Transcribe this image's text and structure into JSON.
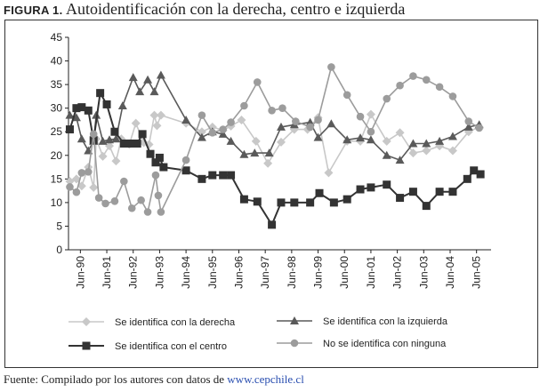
{
  "title": {
    "label": "FIGURA 1.",
    "text": "Autoidentificación con la derecha, centro e izquierda"
  },
  "source": {
    "prefix": "Fuente: Compilado por los autores con datos de ",
    "link": "www.cepchile.cl"
  },
  "colors": {
    "derecha": "#c8c8c8",
    "centro": "#333333",
    "izquierda": "#5a5a5a",
    "ninguna": "#9c9c9c",
    "axis": "#222222"
  },
  "chart_data": {
    "type": "line",
    "title": "Autoidentificación con la derecha, centro e izquierda",
    "xlabel": "",
    "ylabel": "",
    "ylim": [
      0,
      45
    ],
    "yticks": [
      0,
      5,
      10,
      15,
      20,
      25,
      30,
      35,
      40,
      45
    ],
    "xlim": [
      1990.0,
      2006.0
    ],
    "xtick_labels": [
      {
        "x": 1990.45,
        "label": "Jun-90"
      },
      {
        "x": 1991.45,
        "label": "Jun-91"
      },
      {
        "x": 1992.45,
        "label": "Jun-92"
      },
      {
        "x": 1993.45,
        "label": "Jun-93"
      },
      {
        "x": 1994.45,
        "label": "Jun-94"
      },
      {
        "x": 1995.45,
        "label": "Jun-95"
      },
      {
        "x": 1996.45,
        "label": "Jun-96"
      },
      {
        "x": 1997.45,
        "label": "Jun-97"
      },
      {
        "x": 1998.45,
        "label": "Jun-98"
      },
      {
        "x": 1999.45,
        "label": "Jun-99"
      },
      {
        "x": 2000.45,
        "label": "Jun-00"
      },
      {
        "x": 2001.45,
        "label": "Jun-01"
      },
      {
        "x": 2002.45,
        "label": "Jun-02"
      },
      {
        "x": 2003.45,
        "label": "Jun-03"
      },
      {
        "x": 2004.45,
        "label": "Jun-04"
      },
      {
        "x": 2005.45,
        "label": "Jun-05"
      }
    ],
    "legend": {
      "position": "bottom",
      "columns": 2
    },
    "series": [
      {
        "key": "derecha",
        "name": "Se identifica con la derecha",
        "marker": "diamond",
        "points": [
          [
            1990.05,
            14.5
          ],
          [
            1990.3,
            15.0
          ],
          [
            1990.5,
            13.5
          ],
          [
            1990.75,
            17.5
          ],
          [
            1990.95,
            13.2
          ],
          [
            1991.05,
            23.5
          ],
          [
            1991.3,
            19.8
          ],
          [
            1991.55,
            22.0
          ],
          [
            1991.8,
            18.8
          ],
          [
            1992.0,
            23.5
          ],
          [
            1992.3,
            22.3
          ],
          [
            1992.55,
            26.8
          ],
          [
            1992.85,
            22.7
          ],
          [
            1993.05,
            22.3
          ],
          [
            1993.25,
            28.5
          ],
          [
            1993.35,
            26.3
          ],
          [
            1993.5,
            28.5
          ],
          [
            1994.45,
            26.8
          ],
          [
            1995.05,
            25.0
          ],
          [
            1995.45,
            26.0
          ],
          [
            1995.85,
            25.3
          ],
          [
            1996.15,
            26.2
          ],
          [
            1996.55,
            27.5
          ],
          [
            1997.1,
            23.0
          ],
          [
            1997.55,
            18.3
          ],
          [
            1998.05,
            22.8
          ],
          [
            1998.55,
            25.5
          ],
          [
            1999.05,
            25.5
          ],
          [
            1999.45,
            28.0
          ],
          [
            1999.85,
            16.3
          ],
          [
            2000.55,
            23.0
          ],
          [
            2001.05,
            23.0
          ],
          [
            2001.45,
            28.7
          ],
          [
            2002.05,
            23.0
          ],
          [
            2002.55,
            24.8
          ],
          [
            2003.05,
            20.5
          ],
          [
            2003.55,
            21.0
          ],
          [
            2004.05,
            22.0
          ],
          [
            2004.55,
            21.0
          ],
          [
            2005.15,
            25.0
          ],
          [
            2005.55,
            26.0
          ]
        ]
      },
      {
        "key": "izquierda",
        "name": "Se identifica con la izquierda",
        "marker": "triangle",
        "points": [
          [
            1990.05,
            28.5
          ],
          [
            1990.3,
            28.0
          ],
          [
            1990.5,
            23.5
          ],
          [
            1990.75,
            21.0
          ],
          [
            1990.95,
            23.0
          ],
          [
            1991.05,
            28.5
          ],
          [
            1991.3,
            23.0
          ],
          [
            1991.55,
            23.3
          ],
          [
            1991.8,
            23.5
          ],
          [
            1992.05,
            30.5
          ],
          [
            1992.45,
            36.5
          ],
          [
            1992.7,
            33.5
          ],
          [
            1993.0,
            36.0
          ],
          [
            1993.25,
            33.5
          ],
          [
            1993.5,
            37.0
          ],
          [
            1994.45,
            27.5
          ],
          [
            1995.05,
            23.8
          ],
          [
            1995.45,
            25.0
          ],
          [
            1995.85,
            24.5
          ],
          [
            1996.15,
            23.0
          ],
          [
            1996.65,
            20.2
          ],
          [
            1997.05,
            20.5
          ],
          [
            1997.6,
            20.5
          ],
          [
            1998.05,
            26.0
          ],
          [
            1998.55,
            26.5
          ],
          [
            1999.15,
            27.0
          ],
          [
            1999.45,
            23.8
          ],
          [
            1999.95,
            26.7
          ],
          [
            2000.55,
            23.3
          ],
          [
            2001.05,
            23.7
          ],
          [
            2001.45,
            23.3
          ],
          [
            2002.05,
            20.0
          ],
          [
            2002.55,
            19.0
          ],
          [
            2003.05,
            22.5
          ],
          [
            2003.55,
            22.5
          ],
          [
            2004.05,
            23.0
          ],
          [
            2004.55,
            24.0
          ],
          [
            2005.15,
            26.0
          ],
          [
            2005.55,
            26.5
          ]
        ]
      },
      {
        "key": "centro",
        "name": "Se identifica con el centro",
        "marker": "square",
        "points": [
          [
            1990.05,
            25.5
          ],
          [
            1990.3,
            30.0
          ],
          [
            1990.5,
            30.2
          ],
          [
            1990.75,
            29.5
          ],
          [
            1990.95,
            23.2
          ],
          [
            1991.2,
            33.2
          ],
          [
            1991.45,
            30.8
          ],
          [
            1991.75,
            25.0
          ],
          [
            1992.1,
            22.5
          ],
          [
            1992.35,
            22.5
          ],
          [
            1992.6,
            22.5
          ],
          [
            1992.8,
            24.5
          ],
          [
            1993.1,
            20.3
          ],
          [
            1993.3,
            18.5
          ],
          [
            1993.45,
            19.5
          ],
          [
            1993.6,
            17.5
          ],
          [
            1994.45,
            16.8
          ],
          [
            1995.05,
            15.0
          ],
          [
            1995.45,
            15.8
          ],
          [
            1995.85,
            15.8
          ],
          [
            1996.15,
            15.8
          ],
          [
            1996.65,
            10.7
          ],
          [
            1997.15,
            10.2
          ],
          [
            1997.7,
            5.3
          ],
          [
            1998.05,
            10.0
          ],
          [
            1998.55,
            10.0
          ],
          [
            1999.15,
            10.0
          ],
          [
            1999.5,
            12.0
          ],
          [
            2000.05,
            10.0
          ],
          [
            2000.55,
            10.7
          ],
          [
            2001.05,
            12.8
          ],
          [
            2001.45,
            13.2
          ],
          [
            2002.05,
            13.8
          ],
          [
            2002.55,
            11.0
          ],
          [
            2003.05,
            12.3
          ],
          [
            2003.55,
            9.3
          ],
          [
            2004.05,
            12.3
          ],
          [
            2004.55,
            12.3
          ],
          [
            2005.1,
            15.0
          ],
          [
            2005.35,
            16.8
          ],
          [
            2005.6,
            16.0
          ]
        ]
      },
      {
        "key": "ninguna",
        "name": "No se identifica con ninguna",
        "marker": "circle",
        "points": [
          [
            1990.05,
            13.3
          ],
          [
            1990.3,
            12.2
          ],
          [
            1990.5,
            16.3
          ],
          [
            1990.75,
            16.5
          ],
          [
            1990.95,
            24.5
          ],
          [
            1991.15,
            11.0
          ],
          [
            1991.4,
            9.8
          ],
          [
            1991.75,
            10.3
          ],
          [
            1992.1,
            14.5
          ],
          [
            1992.4,
            8.8
          ],
          [
            1992.75,
            10.5
          ],
          [
            1993.0,
            8.0
          ],
          [
            1993.3,
            15.8
          ],
          [
            1993.4,
            11.5
          ],
          [
            1993.5,
            8.0
          ],
          [
            1994.45,
            19.0
          ],
          [
            1995.05,
            28.5
          ],
          [
            1995.45,
            24.8
          ],
          [
            1995.85,
            25.5
          ],
          [
            1996.15,
            27.0
          ],
          [
            1996.65,
            30.5
          ],
          [
            1997.15,
            35.5
          ],
          [
            1997.7,
            29.5
          ],
          [
            1998.1,
            30.0
          ],
          [
            1998.6,
            27.2
          ],
          [
            1999.15,
            26.0
          ],
          [
            1999.45,
            27.5
          ],
          [
            1999.95,
            38.7
          ],
          [
            2000.55,
            32.8
          ],
          [
            2001.05,
            28.2
          ],
          [
            2001.45,
            25.0
          ],
          [
            2002.05,
            32.0
          ],
          [
            2002.55,
            34.8
          ],
          [
            2003.05,
            36.8
          ],
          [
            2003.55,
            36.0
          ],
          [
            2004.05,
            34.5
          ],
          [
            2004.55,
            32.5
          ],
          [
            2005.15,
            27.2
          ],
          [
            2005.55,
            25.8
          ]
        ]
      }
    ]
  }
}
